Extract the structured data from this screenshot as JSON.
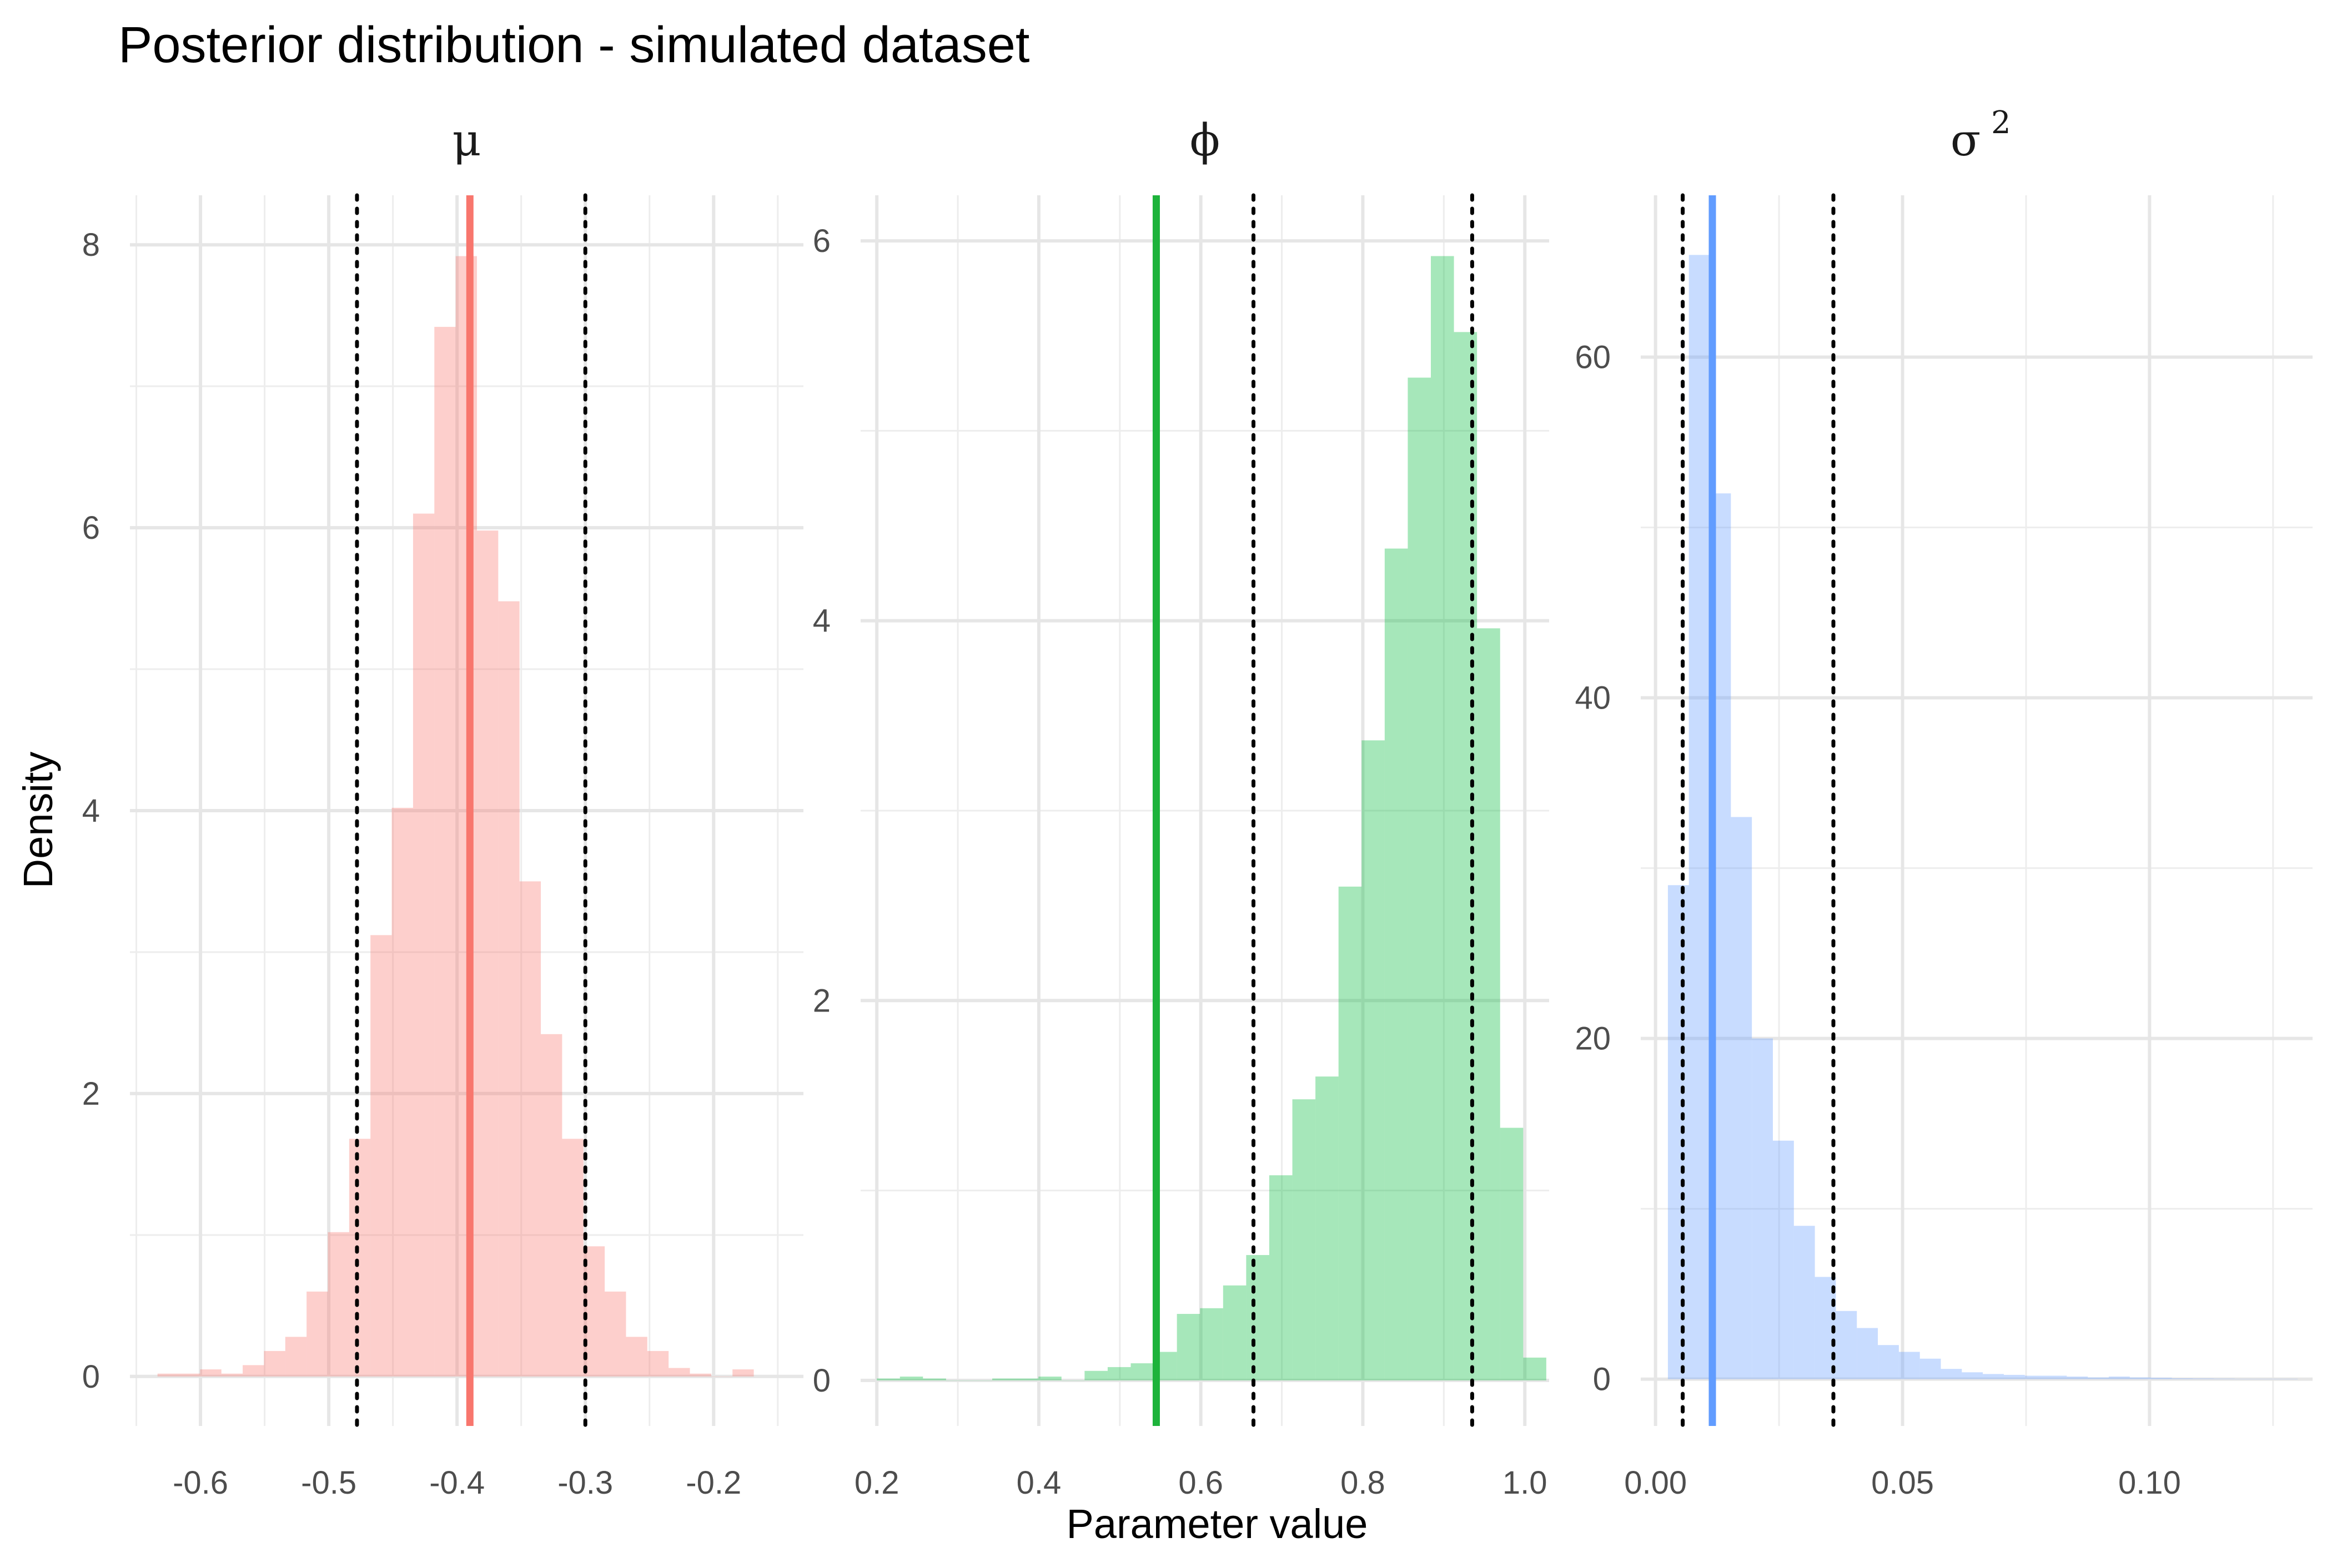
{
  "chart_data": {
    "title": "Posterior distribution - simulated dataset",
    "xlabel": "Parameter value",
    "ylabel": "Density",
    "grid": true,
    "legend": "none",
    "panels": [
      {
        "type": "bar",
        "label": "μ",
        "label_sup": "",
        "color": "#F8766D",
        "true_value_color": "#F8766D",
        "xlim": [
          -0.655,
          -0.13
        ],
        "ylim": [
          -0.35,
          8.35
        ],
        "xticks": [
          -0.6,
          -0.5,
          -0.4,
          -0.3,
          -0.2
        ],
        "xtick_labels": [
          "-0.6",
          "-0.5",
          "-0.4",
          "-0.3",
          "-0.2"
        ],
        "yticks": [
          0,
          2,
          4,
          6,
          8
        ],
        "ytick_labels": [
          "0",
          "2",
          "4",
          "6",
          "8"
        ],
        "bin_start": -0.6335,
        "bin_width": 0.0166,
        "densities": [
          0.02,
          0.02,
          0.05,
          0.02,
          0.08,
          0.18,
          0.28,
          0.6,
          1.02,
          1.68,
          3.12,
          4.02,
          6.1,
          7.42,
          7.92,
          5.98,
          5.48,
          3.5,
          2.42,
          1.68,
          0.92,
          0.6,
          0.28,
          0.18,
          0.06,
          0.02,
          0.0,
          0.05
        ],
        "true_value": -0.39,
        "ci": [
          -0.478,
          -0.3
        ]
      },
      {
        "type": "bar",
        "label": "ϕ",
        "label_sup": "",
        "color": "#00BA38",
        "true_value_color": "#1db33b",
        "xlim": [
          0.18,
          1.03
        ],
        "ylim": [
          -0.24,
          6.24
        ],
        "xticks": [
          0.2,
          0.4,
          0.6,
          0.8,
          1.0
        ],
        "xtick_labels": [
          "0.2",
          "0.4",
          "0.6",
          "0.8",
          "1.0"
        ],
        "yticks": [
          0,
          2,
          4,
          6
        ],
        "ytick_labels": [
          "0",
          "2",
          "4",
          "6"
        ],
        "bin_start": 0.2,
        "bin_width": 0.0285,
        "densities": [
          0.01,
          0.02,
          0.01,
          0.0,
          0.0,
          0.01,
          0.01,
          0.02,
          0.0,
          0.05,
          0.07,
          0.09,
          0.15,
          0.35,
          0.38,
          0.5,
          0.66,
          1.08,
          1.48,
          1.6,
          2.6,
          3.37,
          4.38,
          5.28,
          5.92,
          5.52,
          3.96,
          1.33,
          0.12
        ],
        "true_value": 0.545,
        "ci": [
          0.665,
          0.935
        ]
      },
      {
        "type": "bar",
        "label": "σ",
        "label_sup": "2",
        "color": "#619CFF",
        "true_value_color": "#619CFF",
        "xlim": [
          -0.003,
          0.133
        ],
        "ylim": [
          -2.75,
          69.5
        ],
        "xticks": [
          0.0,
          0.05,
          0.1
        ],
        "xtick_labels": [
          "0.00",
          "0.05",
          "0.10"
        ],
        "yticks": [
          0,
          20,
          40,
          60
        ],
        "ytick_labels": [
          "0",
          "20",
          "40",
          "60"
        ],
        "bin_start": 0.0025,
        "bin_width": 0.00425,
        "densities": [
          29,
          66,
          52,
          33,
          20,
          14,
          9,
          6,
          4,
          3,
          2,
          1.6,
          1.2,
          0.6,
          0.4,
          0.3,
          0.25,
          0.2,
          0.2,
          0.15,
          0.1,
          0.15,
          0.1,
          0.08,
          0.05,
          0.04,
          0.03,
          0.02,
          0.02,
          0.02
        ],
        "true_value": 0.0115,
        "ci": [
          0.0055,
          0.036
        ]
      }
    ]
  }
}
